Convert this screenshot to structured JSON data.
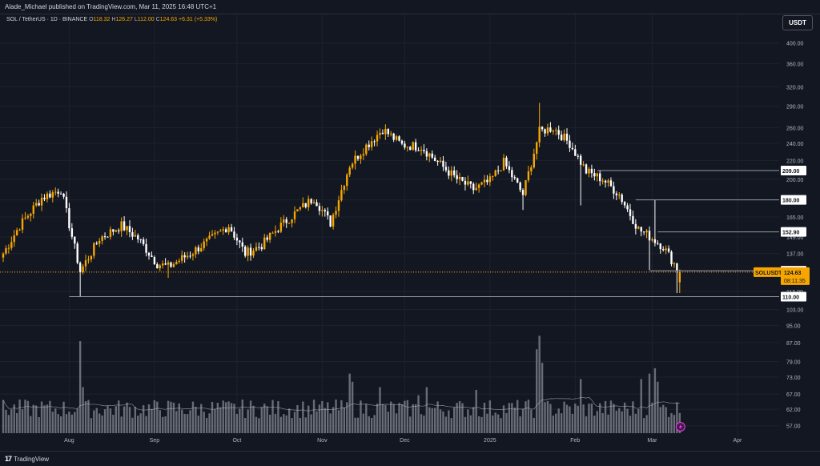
{
  "header": {
    "published": "Alade_Michael published on TradingView.com, Mar 11, 2025 16:48 UTC+1"
  },
  "legend": {
    "symbol": "SOL / TetherUS · 1D · BINANCE",
    "o_label": "O",
    "o_value": "118.32",
    "h_label": "H",
    "h_value": "126.27",
    "l_label": "L",
    "l_value": "112.00",
    "c_label": "C",
    "c_value": "124.63",
    "change": "+6.31 (+5.33%)"
  },
  "currency_button": "USDT",
  "footer": {
    "brand": "TradingView"
  },
  "colors": {
    "up": "#f7a600",
    "down": "#ffffff",
    "volume": "#787b86",
    "background": "#131722",
    "grid": "#1e222d",
    "level": "#9598a1",
    "price_tag": "#f7a600"
  },
  "icons": {
    "flash": "lightning-icon",
    "logo": "tradingview-logo-icon"
  },
  "chart_data": {
    "type": "candlestick",
    "symbol": "SOLUSDT",
    "y_scale": "log",
    "ylim": [
      54,
      430
    ],
    "y_ticks": [
      "400.00",
      "360.00",
      "320.00",
      "290.00",
      "260.00",
      "240.00",
      "220.00",
      "200.00",
      "180.00",
      "165.00",
      "149.00",
      "137.00",
      "125.00",
      "113.00",
      "103.00",
      "95.00",
      "87.00",
      "79.00",
      "73.00",
      "67.00",
      "62.00",
      "57.00"
    ],
    "x_labels": [
      "Aug",
      "Sep",
      "Oct",
      "Nov",
      "Dec",
      "2025",
      "Feb",
      "Mar",
      "Apr"
    ],
    "x_range": [
      "2024-07-08",
      "2025-04-15"
    ],
    "levels": [
      {
        "label": "209.00",
        "value": 209,
        "from": "2025-02-09"
      },
      {
        "label": "180.00",
        "value": 180,
        "from": "2025-02-23"
      },
      {
        "label": "152.90",
        "value": 152.9,
        "from": "2025-03-03"
      },
      {
        "label": "125.50",
        "value": 125.5,
        "from": "2025-02-28"
      },
      {
        "label": "110.00",
        "value": 110,
        "from": "2024-08-01"
      }
    ],
    "current_price": {
      "symbol": "SOLUSDT",
      "value": 124.63,
      "countdown": "08:11:35"
    },
    "anchors": [
      [
        "2024-07-08",
        137
      ],
      [
        "2024-07-14",
        158
      ],
      [
        "2024-07-22",
        182
      ],
      [
        "2024-07-29",
        190
      ],
      [
        "2024-08-05",
        125
      ],
      [
        "2024-08-12",
        148
      ],
      [
        "2024-08-20",
        158
      ],
      [
        "2024-08-26",
        148
      ],
      [
        "2024-09-02",
        130
      ],
      [
        "2024-09-06",
        128
      ],
      [
        "2024-09-14",
        137
      ],
      [
        "2024-09-22",
        148
      ],
      [
        "2024-09-28",
        158
      ],
      [
        "2024-10-04",
        137
      ],
      [
        "2024-10-10",
        143
      ],
      [
        "2024-10-16",
        156
      ],
      [
        "2024-10-22",
        168
      ],
      [
        "2024-10-29",
        182
      ],
      [
        "2024-11-04",
        160
      ],
      [
        "2024-11-11",
        215
      ],
      [
        "2024-11-17",
        237
      ],
      [
        "2024-11-23",
        258
      ],
      [
        "2024-11-30",
        238
      ],
      [
        "2024-12-07",
        236
      ],
      [
        "2024-12-13",
        218
      ],
      [
        "2024-12-20",
        200
      ],
      [
        "2024-12-26",
        190
      ],
      [
        "2025-01-01",
        198
      ],
      [
        "2025-01-06",
        218
      ],
      [
        "2025-01-13",
        185
      ],
      [
        "2025-01-19",
        255
      ],
      [
        "2025-01-24",
        260
      ],
      [
        "2025-01-30",
        240
      ],
      [
        "2025-02-05",
        208
      ],
      [
        "2025-02-11",
        200
      ],
      [
        "2025-02-17",
        185
      ],
      [
        "2025-02-24",
        155
      ],
      [
        "2025-03-01",
        148
      ],
      [
        "2025-03-05",
        142
      ],
      [
        "2025-03-09",
        130
      ],
      [
        "2025-03-11",
        124.63
      ]
    ],
    "last_candle": {
      "date": "2025-03-11",
      "open": 118.32,
      "high": 126.27,
      "low": 112.0,
      "close": 124.63
    },
    "wicks": [
      {
        "date": "2024-08-05",
        "low": 110
      },
      {
        "date": "2024-09-06",
        "low": 121
      },
      {
        "date": "2025-01-19",
        "high": 295
      },
      {
        "date": "2025-01-13",
        "low": 171
      },
      {
        "date": "2025-02-03",
        "low": 175
      },
      {
        "date": "2025-02-28",
        "low": 126
      },
      {
        "date": "2025-03-02",
        "high": 180
      },
      {
        "date": "2025-03-10",
        "low": 112
      }
    ],
    "volume": {
      "baseline": 1.0,
      "spikes": [
        {
          "date": "2024-08-05",
          "value": 3.4
        },
        {
          "date": "2024-08-06",
          "value": 1.7
        },
        {
          "date": "2024-11-11",
          "value": 2.2
        },
        {
          "date": "2024-11-12",
          "value": 1.9
        },
        {
          "date": "2024-11-22",
          "value": 1.7
        },
        {
          "date": "2024-12-06",
          "value": 1.4
        },
        {
          "date": "2024-12-09",
          "value": 1.7
        },
        {
          "date": "2024-12-27",
          "value": 1.6
        },
        {
          "date": "2025-01-18",
          "value": 3.1
        },
        {
          "date": "2025-01-19",
          "value": 3.6
        },
        {
          "date": "2025-01-20",
          "value": 2.6
        },
        {
          "date": "2025-02-03",
          "value": 2.0
        },
        {
          "date": "2025-02-25",
          "value": 2.0
        },
        {
          "date": "2025-02-28",
          "value": 2.2
        },
        {
          "date": "2025-03-02",
          "value": 2.4
        },
        {
          "date": "2025-03-03",
          "value": 1.9
        }
      ]
    }
  }
}
